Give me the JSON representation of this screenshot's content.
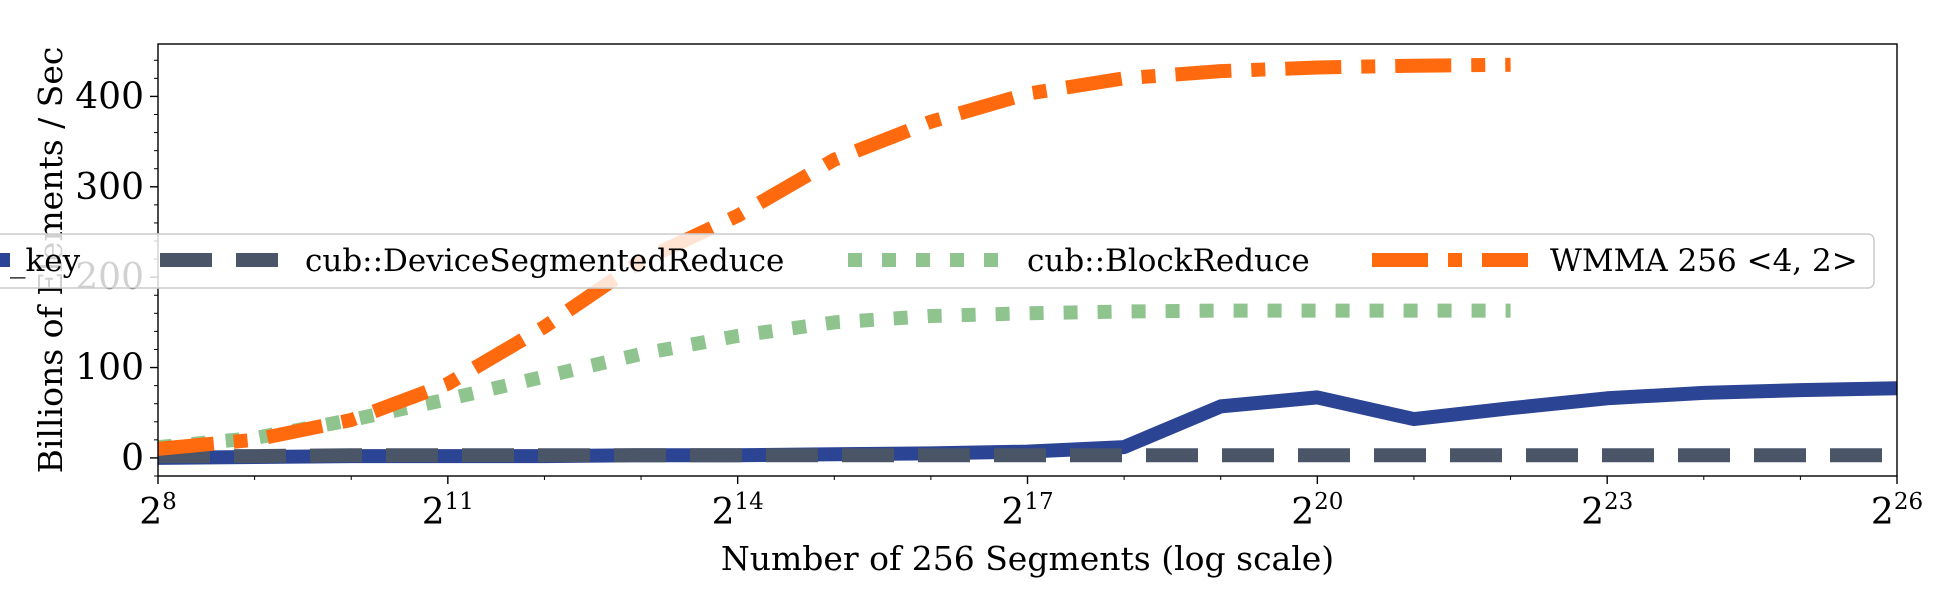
{
  "chart_data": {
    "type": "line",
    "title": "",
    "xlabel": "Number of 256 Segments (log scale)",
    "ylabel": "Billions of Elements / Sec",
    "xscale": "log2",
    "xlim": [
      8,
      26
    ],
    "ylim": [
      -20,
      458
    ],
    "xticks": [
      {
        "base": "2",
        "exp": "8",
        "value": 8
      },
      {
        "base": "2",
        "exp": "11",
        "value": 11
      },
      {
        "base": "2",
        "exp": "14",
        "value": 14
      },
      {
        "base": "2",
        "exp": "17",
        "value": 17
      },
      {
        "base": "2",
        "exp": "20",
        "value": 20
      },
      {
        "base": "2",
        "exp": "23",
        "value": 23
      },
      {
        "base": "2",
        "exp": "26",
        "value": 26
      }
    ],
    "yticks": [
      {
        "label": "0",
        "value": 0
      },
      {
        "label": "100",
        "value": 100
      },
      {
        "label": "200",
        "value": 200
      },
      {
        "label": "300",
        "value": 300
      },
      {
        "label": "400",
        "value": 400
      }
    ],
    "grid": false,
    "legend_placement": "center, spanning width (partially clipped on the left)",
    "series": [
      {
        "name": "_key",
        "color": "#2b4494",
        "style": "solid",
        "x": [
          8,
          9,
          10,
          11,
          12,
          13,
          14,
          15,
          16,
          17,
          18,
          19,
          20,
          21,
          22,
          23,
          24,
          25,
          26
        ],
        "y": [
          0,
          1,
          2,
          2,
          2,
          3,
          3,
          4,
          5,
          7,
          12,
          57,
          67,
          43,
          55,
          66,
          72,
          75,
          77
        ]
      },
      {
        "name": "cub::DeviceSegmentedReduce",
        "color": "#4a5568",
        "style": "dashed",
        "x": [
          8,
          9,
          10,
          11,
          12,
          13,
          14,
          15,
          16,
          17,
          18,
          19,
          20,
          21,
          22,
          23,
          24,
          25,
          26
        ],
        "y": [
          2,
          2,
          3,
          3,
          3,
          3,
          3,
          3,
          3,
          3,
          3,
          3,
          3,
          3,
          3,
          3,
          3,
          3,
          3
        ]
      },
      {
        "name": "cub::BlockReduce",
        "color": "#8fc48f",
        "style": "dotted",
        "x": [
          8,
          9,
          10,
          11,
          12,
          13,
          14,
          15,
          16,
          17,
          18,
          19,
          20,
          21,
          22
        ],
        "y": [
          12,
          22,
          42,
          65,
          90,
          115,
          135,
          150,
          157,
          160,
          162,
          163,
          163,
          163,
          163
        ]
      },
      {
        "name": "WMMA 256 <4, 2>",
        "color": "#ff6a0e",
        "style": "dashdot",
        "x": [
          8,
          9,
          10,
          11,
          12,
          13,
          14,
          15,
          16,
          17,
          18,
          19,
          20,
          21,
          22
        ],
        "y": [
          10,
          20,
          42,
          82,
          145,
          218,
          268,
          330,
          372,
          403,
          420,
          428,
          432,
          434,
          435
        ]
      }
    ]
  }
}
